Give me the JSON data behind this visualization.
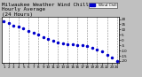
{
  "title_line1": "Milwaukee Weather Wind Chill",
  "title_line2": "Hourly Average",
  "title_line3": "(24 Hours)",
  "hours": [
    1,
    2,
    3,
    4,
    5,
    6,
    7,
    8,
    9,
    10,
    11,
    12,
    13,
    14,
    15,
    16,
    17,
    18,
    19,
    20,
    21,
    22,
    23,
    24
  ],
  "wind_chill": [
    18,
    16,
    14,
    13,
    11,
    9,
    7,
    5,
    3,
    1,
    -1,
    -2,
    -3,
    -4,
    -4,
    -5,
    -5,
    -6,
    -7,
    -9,
    -11,
    -14,
    -17,
    -20
  ],
  "dot_color": "#0000cc",
  "bg_color": "#c0c0c0",
  "plot_bg": "#ffffff",
  "ylim": [
    -22,
    22
  ],
  "ytick_right_values": [
    20,
    15,
    10,
    5,
    0,
    -5,
    -10,
    -15,
    -20
  ],
  "ytick_right_labels": [
    "20",
    "15",
    "10",
    "5",
    "0",
    "-5",
    "-10",
    "-15",
    "-20"
  ],
  "grid_color": "#888888",
  "title_fontsize": 4.2,
  "tick_fontsize": 3.0,
  "legend_label": "Wind Chill",
  "legend_color": "#0000cc",
  "dot_size": 1.5
}
